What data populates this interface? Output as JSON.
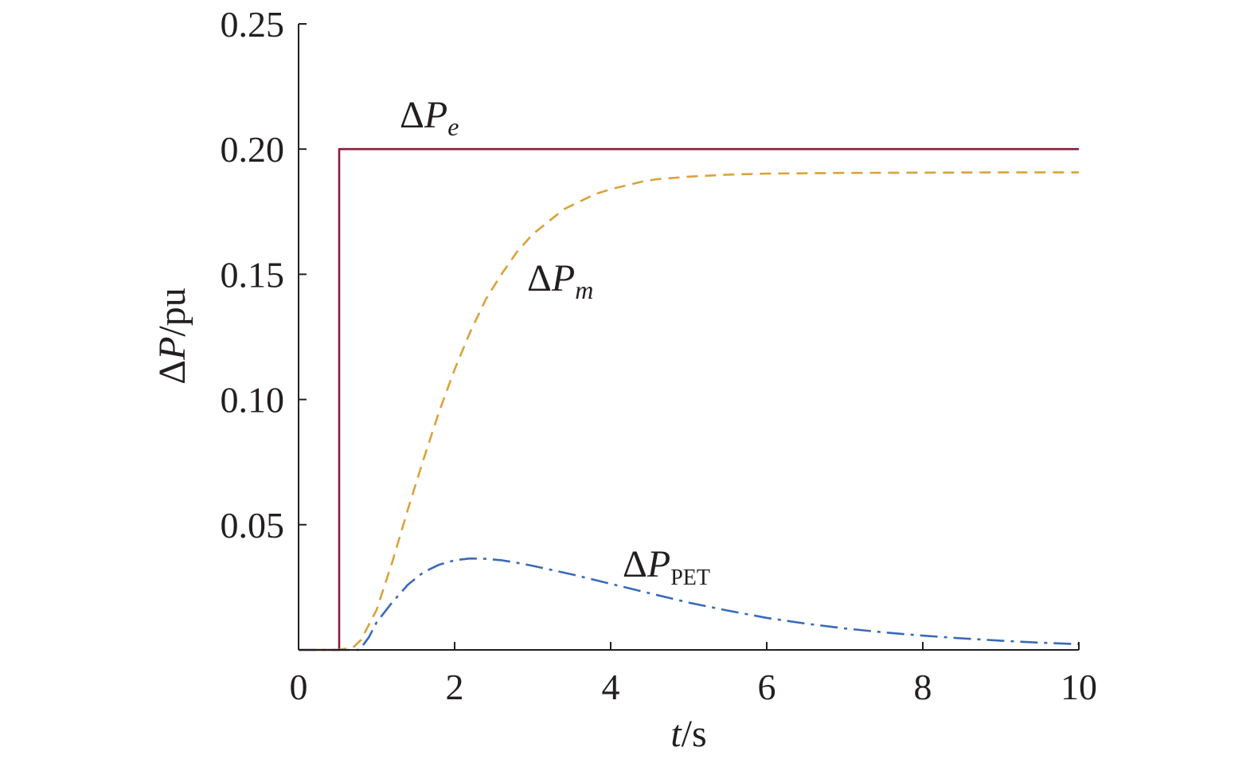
{
  "chart_data": {
    "type": "line",
    "xlabel": {
      "main": "t",
      "unit": "/s"
    },
    "ylabel": {
      "delta": "Δ",
      "main": "P",
      "unit": "/pu"
    },
    "xlim": [
      0,
      10
    ],
    "ylim": [
      0,
      0.25
    ],
    "x_ticks": [
      0,
      2,
      4,
      6,
      8,
      10
    ],
    "x_tick_labels": [
      "0",
      "2",
      "4",
      "6",
      "8",
      "10"
    ],
    "y_ticks": [
      0.05,
      0.1,
      0.15,
      0.2,
      0.25
    ],
    "y_tick_labels": [
      "0.05",
      "0.10",
      "0.15",
      "0.20",
      "0.25"
    ],
    "grid": false,
    "series": [
      {
        "name": "ΔPe",
        "label": {
          "delta": "Δ",
          "main": "P",
          "sub": "e"
        },
        "color": "#8b1a3a",
        "style": "solid",
        "x": [
          0,
          0.52,
          0.52,
          10
        ],
        "y": [
          0,
          0,
          0.2,
          0.2
        ]
      },
      {
        "name": "ΔPm",
        "label": {
          "delta": "Δ",
          "main": "P",
          "sub": "m"
        },
        "color": "#d9a33a",
        "style": "dashed",
        "x": [
          0,
          0.5,
          0.7,
          0.8,
          1.0,
          1.2,
          1.4,
          1.6,
          1.8,
          2.0,
          2.2,
          2.4,
          2.6,
          2.8,
          3.0,
          3.2,
          3.4,
          3.6,
          3.8,
          4.0,
          4.2,
          4.4,
          4.6,
          4.8,
          5.0,
          5.5,
          6.0,
          7.0,
          8.0,
          9.0,
          10.0
        ],
        "y": [
          0,
          0,
          0.001,
          0.004,
          0.016,
          0.035,
          0.056,
          0.076,
          0.095,
          0.112,
          0.127,
          0.14,
          0.15,
          0.159,
          0.166,
          0.171,
          0.176,
          0.179,
          0.182,
          0.184,
          0.1855,
          0.187,
          0.188,
          0.1885,
          0.189,
          0.1898,
          0.1902,
          0.1905,
          0.1906,
          0.1907,
          0.1907
        ]
      },
      {
        "name": "ΔPPET",
        "label": {
          "delta": "Δ",
          "main": "P",
          "sub": "PET"
        },
        "color": "#3a6ab5",
        "style": "dashdot",
        "x": [
          0,
          0.78,
          0.9,
          1.0,
          1.2,
          1.4,
          1.6,
          1.8,
          2.0,
          2.2,
          2.4,
          2.6,
          2.8,
          3.0,
          3.5,
          4.0,
          4.5,
          5.0,
          5.5,
          6.0,
          6.5,
          7.0,
          7.5,
          8.0,
          8.5,
          9.0,
          9.5,
          10.0
        ],
        "y": [
          0,
          0,
          0.005,
          0.011,
          0.019,
          0.026,
          0.031,
          0.034,
          0.0358,
          0.0365,
          0.0364,
          0.0358,
          0.0348,
          0.0336,
          0.0302,
          0.0264,
          0.0226,
          0.0189,
          0.0157,
          0.0128,
          0.0105,
          0.0086,
          0.007,
          0.0057,
          0.0046,
          0.0037,
          0.0029,
          0.0023
        ]
      }
    ]
  }
}
